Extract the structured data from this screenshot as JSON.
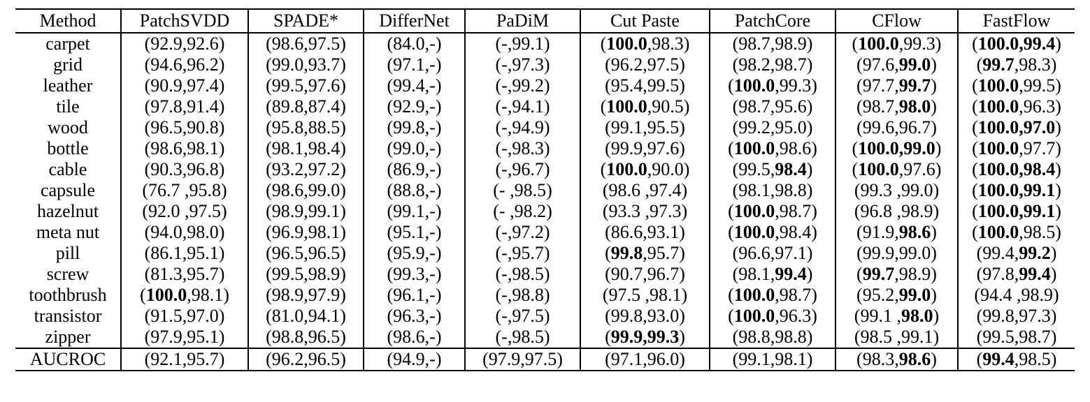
{
  "table": {
    "bold_marker": "**",
    "columns": [
      "Method",
      "PatchSVDD",
      "SPADE*",
      "DifferNet",
      "PaDiM",
      "Cut Paste",
      "PatchCore",
      "CFlow",
      "FastFlow"
    ],
    "rows": [
      {
        "method": "carpet",
        "cells": [
          "(92.9,92.6)",
          "(98.6,97.5)",
          "(84.0,-)",
          "(-,99.1)",
          "(**100.0**,98.3)",
          "(98.7,98.9)",
          "(**100.0**,99.3)",
          "(**100.0,99.4**)"
        ]
      },
      {
        "method": "grid",
        "cells": [
          "(94.6,96.2)",
          "(99.0,93.7)",
          "(97.1,-)",
          "(-,97.3)",
          "(96.2,97.5)",
          "(98.2,98.7)",
          "(97.6,**99.0**)",
          "(**99.7**,98.3)"
        ]
      },
      {
        "method": "leather",
        "cells": [
          "(90.9,97.4)",
          "(99.5,97.6)",
          "(99.4,-)",
          "(-,99.2)",
          "(95.4,99.5)",
          "(**100.0**,99.3)",
          "(97.7,**99.7**)",
          "(**100.0**,99.5)"
        ]
      },
      {
        "method": "tile",
        "cells": [
          "(97.8,91.4)",
          "(89.8,87.4)",
          "(92.9,-)",
          "(-,94.1)",
          "(**100.0**,90.5)",
          "(98.7,95.6)",
          "(98.7,**98.0**)",
          "(**100.0**,96.3)"
        ]
      },
      {
        "method": "wood",
        "cells": [
          "(96.5,90.8)",
          "(95.8,88.5)",
          "(99.8,-)",
          "(-,94.9)",
          "(99.1,95.5)",
          "(99.2,95.0)",
          "(99.6,96.7)",
          "(**100.0,97.0**)"
        ]
      },
      {
        "method": "bottle",
        "cells": [
          "(98.6,98.1)",
          "(98.1,98.4)",
          "(99.0,-)",
          "(-,98.3)",
          "(99.9,97.6)",
          "(**100.0**,98.6)",
          "(**100.0,99.0**)",
          "(**100.0**,97.7)"
        ]
      },
      {
        "method": "cable",
        "cells": [
          "(90.3,96.8)",
          "(93.2,97.2)",
          "(86.9,-)",
          "(-,96.7)",
          "(**100.0**,90.0)",
          "(99.5,**98.4**)",
          "(**100.0**,97.6)",
          "(**100.0,98.4**)"
        ]
      },
      {
        "method": "capsule",
        "cells": [
          "(76.7 ,95.8)",
          "(98.6,99.0)",
          "(88.8,-)",
          "(- ,98.5)",
          "(98.6 ,97.4)",
          "(98.1,98.8)",
          "(99.3 ,99.0)",
          "(**100.0,99.1**)"
        ]
      },
      {
        "method": "hazelnut",
        "cells": [
          "(92.0 ,97.5)",
          "(98.9,99.1)",
          "(99.1,-)",
          "(- ,98.2)",
          "(93.3 ,97.3)",
          "(**100.0**,98.7)",
          "(96.8 ,98.9)",
          "(**100.0,99.1**)"
        ]
      },
      {
        "method": "meta nut",
        "cells": [
          "(94.0,98.0)",
          "(96.9,98.1)",
          "(95.1,-)",
          "(-,97.2)",
          "(86.6,93.1)",
          "(**100.0**,98.4)",
          "(91.9,**98.6**)",
          "(**100.0**,98.5)"
        ]
      },
      {
        "method": "pill",
        "cells": [
          "(86.1,95.1)",
          "(96.5,96.5)",
          "(95.9,-)",
          "(-,95.7)",
          "(**99.8**,95.7)",
          "(96.6,97.1)",
          "(99.9,99.0)",
          "(99.4,**99.2**)"
        ]
      },
      {
        "method": "screw",
        "cells": [
          "(81.3,95.7)",
          "(99.5,98.9)",
          "(99.3,-)",
          "(-,98.5)",
          "(90.7,96.7)",
          "(98.1,**99.4**)",
          "(**99.7**,98.9)",
          "(97.8,**99.4**)"
        ]
      },
      {
        "method": "toothbrush",
        "cells": [
          "(**100.0**,98.1)",
          "(98.9,97.9)",
          "(96.1,-)",
          "(-,98.8)",
          "(97.5 ,98.1)",
          "(**100.0**,98.7)",
          "(95.2,**99.0**)",
          "(94.4 ,98.9)"
        ]
      },
      {
        "method": "transistor",
        "cells": [
          "(91.5,97.0)",
          "(81.0,94.1)",
          "(96.3,-)",
          "(-,97.5)",
          "(99.8,93.0)",
          "(**100.0**,96.3)",
          "(99.1 ,**98.0**)",
          "(99.8,97.3)"
        ]
      },
      {
        "method": "zipper",
        "cells": [
          "(97.9,95.1)",
          "(98.8,96.5)",
          "(98.6,-)",
          "(-,98.5)",
          "(**99.9,99.3**)",
          "(98.8,98.8)",
          "(98.5 ,99.1)",
          "(99.5,98.7)"
        ]
      }
    ],
    "footer": {
      "method": "AUCROC",
      "cells": [
        "(92.1,95.7)",
        "(96.2,96.5)",
        "(94.9,-)",
        "(97.9,97.5)",
        "(97.1,96.0)",
        "(99.1,98.1)",
        "(98.3,**98.6**)",
        "(**99.4**,98.5)"
      ]
    }
  }
}
